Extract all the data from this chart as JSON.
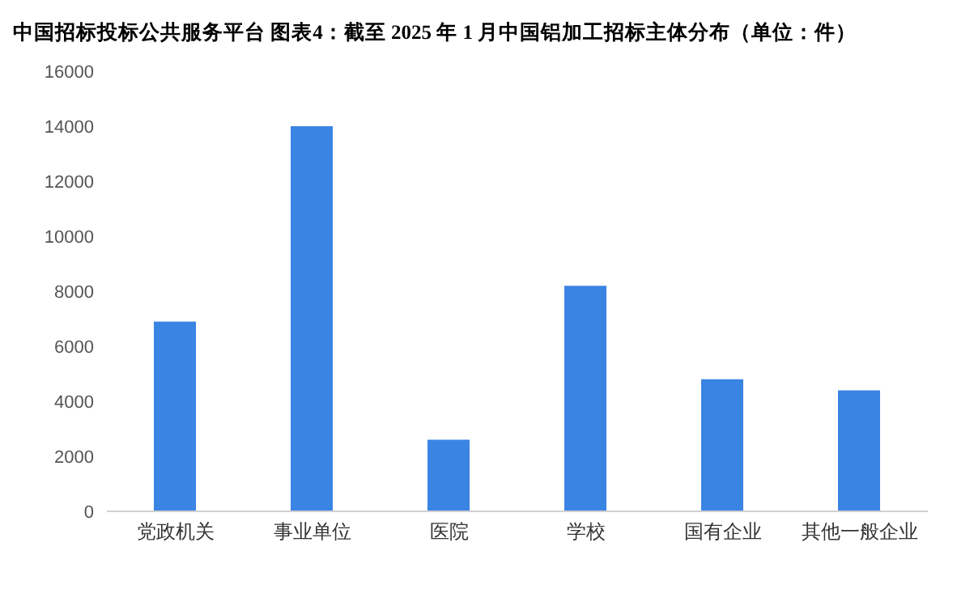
{
  "chart_data": {
    "type": "bar",
    "title": "中国招标投标公共服务平台  图表4：截至 2025 年 1 月中国铝加工招标主体分布（单位：件）",
    "categories": [
      "党政机关",
      "事业单位",
      "医院",
      "学校",
      "国有企业",
      "其他一般企业"
    ],
    "values": [
      6900,
      14000,
      2600,
      8200,
      4800,
      4400
    ],
    "color": "#3a84e4",
    "ylim": [
      0,
      16000
    ],
    "yticks": [
      0,
      2000,
      4000,
      6000,
      8000,
      10000,
      12000,
      14000,
      16000
    ],
    "grid": false
  }
}
